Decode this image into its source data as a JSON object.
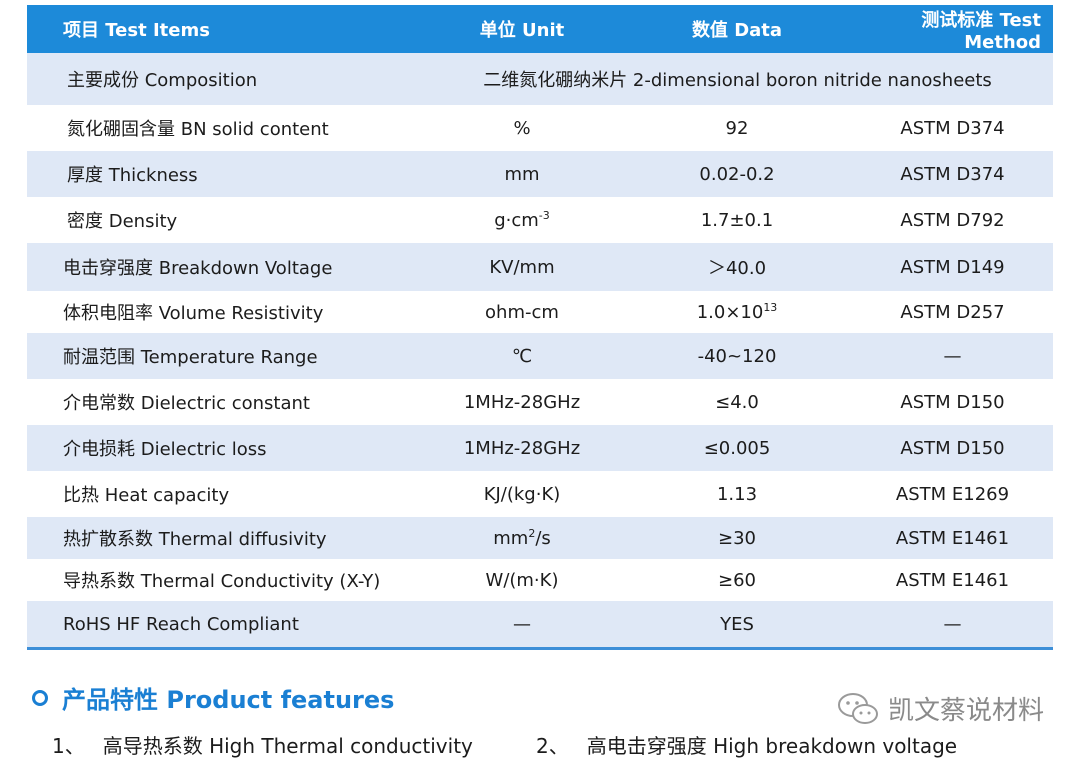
{
  "header": {
    "col1": "项目  Test  Items",
    "col2": "单位  Unit",
    "col3": "数值 Data",
    "col4": "测试标准 Test  Method"
  },
  "composition": {
    "label": "主要成份   Composition",
    "value": "二维氮化硼纳米片  2-dimensional boron nitride nanosheets"
  },
  "rows": [
    {
      "item": "氮化硼固含量 BN solid content",
      "unit": "%",
      "data": "92",
      "method": "ASTM D374"
    },
    {
      "item": "厚度 Thickness",
      "unit": "mm",
      "data": "0.02-0.2",
      "method": "ASTM D374"
    },
    {
      "item": "密度 Density",
      "unit_base": "g·cm",
      "unit_sup": "-3",
      "data": "1.7±0.1",
      "method": "ASTM D792"
    },
    {
      "item": "电击穿强度 Breakdown Voltage",
      "unit": "KV/mm",
      "data": "＞40.0",
      "method": "ASTM D149"
    },
    {
      "item": "体积电阻率 Volume Resistivity",
      "unit": "ohm-cm",
      "data_base": "1.0×10",
      "data_sup": "13",
      "method": "ASTM D257"
    },
    {
      "item": "耐温范围 Temperature Range",
      "unit": "℃",
      "data": "-40~120",
      "method": "—"
    },
    {
      "item": "介电常数 Dielectric constant",
      "unit": "1MHz-28GHz",
      "data": "≤4.0",
      "method": "ASTM  D150"
    },
    {
      "item": "介电损耗 Dielectric loss",
      "unit": "1MHz-28GHz",
      "data": "≤0.005",
      "method": "ASTM  D150"
    },
    {
      "item": "比热 Heat capacity",
      "unit": "KJ/(kg·K)",
      "data": "1.13",
      "method": "ASTM E1269"
    },
    {
      "item": "热扩散系数 Thermal diffusivity",
      "unit_base": "mm",
      "unit_sup": "2",
      "unit_tail": "/s",
      "data": "≥30",
      "method": "ASTM E1461"
    },
    {
      "item": "导热系数  Thermal Conductivity  (X-Y)",
      "unit": "W/(m·K)",
      "data": "≥60",
      "method": "ASTM E1461"
    },
    {
      "item": "RoHS  HF   Reach Compliant",
      "unit": "—",
      "data": "YES",
      "method": "—"
    }
  ],
  "features": {
    "title": "产品特性 Product features",
    "items": [
      {
        "num": "1、",
        "text": "高导热系数  High  Thermal conductivity"
      },
      {
        "num": "2、",
        "text": "高电击穿强度 High breakdown voltage"
      }
    ]
  },
  "watermark": {
    "text": "凯文蔡说材料",
    "icon": "wechat-icon"
  }
}
